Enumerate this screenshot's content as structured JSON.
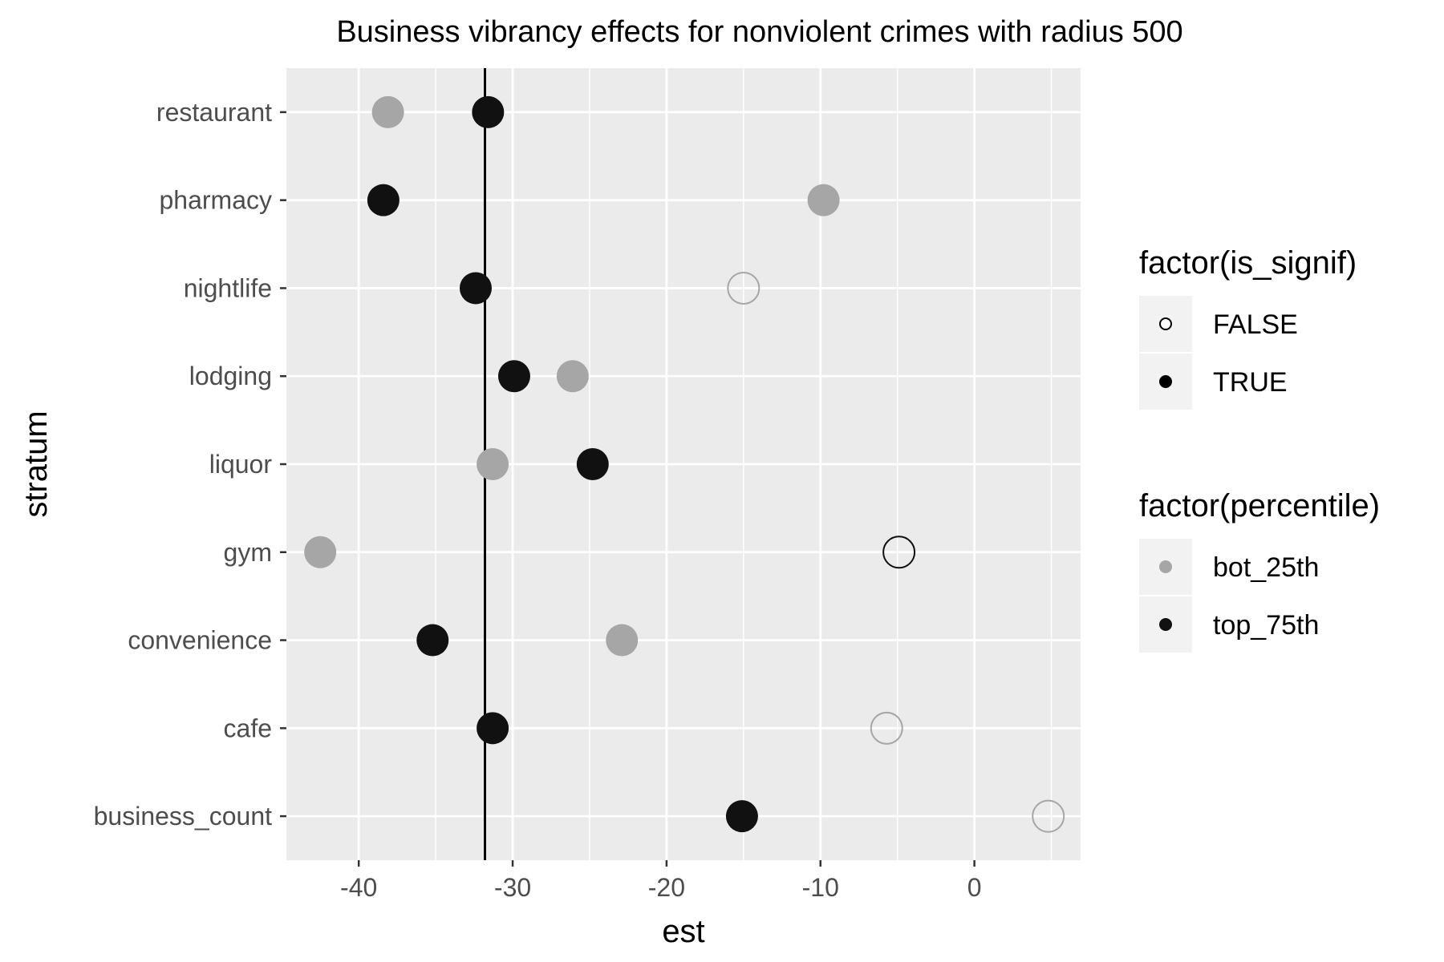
{
  "chart_data": {
    "type": "scatter",
    "title": "Business vibrancy effects for nonviolent crimes with radius 500",
    "xlabel": "est",
    "ylabel": "stratum",
    "xlim": [
      -44.7,
      6.9
    ],
    "x_ticks": [
      -40,
      -30,
      -20,
      -10,
      0
    ],
    "x_tick_labels": [
      "-40",
      "-30",
      "-20",
      "-10",
      "0"
    ],
    "categories": [
      "restaurant",
      "pharmacy",
      "nightlife",
      "lodging",
      "liquor",
      "gym",
      "convenience",
      "cafe",
      "business_count"
    ],
    "reference_line": {
      "x": -31.8,
      "color": "#000000"
    },
    "grid": true,
    "series": [
      {
        "name": "bot_25th",
        "color": "#a6a6a6",
        "points": [
          {
            "category": "restaurant",
            "x": -38.1,
            "is_signif": true
          },
          {
            "category": "pharmacy",
            "x": -9.8,
            "is_signif": true
          },
          {
            "category": "nightlife",
            "x": -15.0,
            "is_signif": false
          },
          {
            "category": "lodging",
            "x": -26.1,
            "is_signif": true
          },
          {
            "category": "liquor",
            "x": -31.3,
            "is_signif": true
          },
          {
            "category": "gym",
            "x": -42.5,
            "is_signif": true
          },
          {
            "category": "convenience",
            "x": -22.9,
            "is_signif": true
          },
          {
            "category": "cafe",
            "x": -5.7,
            "is_signif": false
          },
          {
            "category": "business_count",
            "x": 4.8,
            "is_signif": false
          }
        ]
      },
      {
        "name": "top_75th",
        "color": "#111111",
        "points": [
          {
            "category": "restaurant",
            "x": -31.6,
            "is_signif": true
          },
          {
            "category": "pharmacy",
            "x": -38.4,
            "is_signif": true
          },
          {
            "category": "nightlife",
            "x": -32.4,
            "is_signif": true
          },
          {
            "category": "lodging",
            "x": -29.9,
            "is_signif": true
          },
          {
            "category": "liquor",
            "x": -24.8,
            "is_signif": true
          },
          {
            "category": "gym",
            "x": -4.9,
            "is_signif": false
          },
          {
            "category": "convenience",
            "x": -35.2,
            "is_signif": true
          },
          {
            "category": "cafe",
            "x": -31.3,
            "is_signif": true
          },
          {
            "category": "business_count",
            "x": -15.1,
            "is_signif": true
          }
        ]
      }
    ],
    "legends": [
      {
        "title": "factor(is_signif)",
        "items": [
          {
            "label": "FALSE",
            "marker": "hollow"
          },
          {
            "label": "TRUE",
            "marker": "filled"
          }
        ]
      },
      {
        "title": "factor(percentile)",
        "items": [
          {
            "label": "bot_25th",
            "color": "#a6a6a6"
          },
          {
            "label": "top_75th",
            "color": "#111111"
          }
        ]
      }
    ],
    "legend_position": "right",
    "colors": {
      "panel_background": "#ebebeb",
      "grid_line": "#ffffff",
      "legend_key_background": "#f2f2f2"
    }
  }
}
